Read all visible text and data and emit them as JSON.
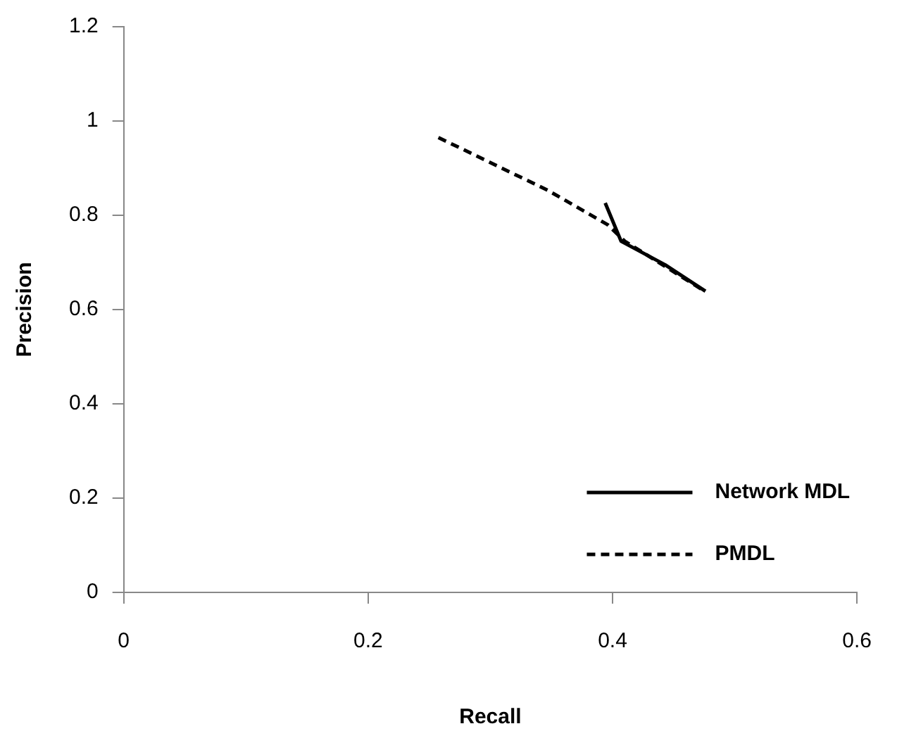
{
  "chart_data": {
    "type": "line",
    "xlabel": "Recall",
    "ylabel": "Precision",
    "xlim": [
      0,
      0.6
    ],
    "xticks": [
      0,
      0.2,
      0.4,
      0.6
    ],
    "ylim": [
      0,
      1.2
    ],
    "yticks": [
      0,
      0.2,
      0.4,
      0.6,
      0.8,
      1,
      1.2
    ],
    "grid": false,
    "legend": "bottom right",
    "marker": "none",
    "series": [
      {
        "name": "Network MDL",
        "color": "#000000",
        "line_style": "solid",
        "x": [
          0.394,
          0.407,
          0.443,
          0.476
        ],
        "values": [
          0.826,
          0.745,
          0.695,
          0.639
        ]
      },
      {
        "name": "PMDL",
        "color": "#000000",
        "line_style": "dashed",
        "x": [
          0.2575,
          0.347,
          0.396,
          0.41,
          0.476
        ],
        "values": [
          0.965,
          0.853,
          0.78,
          0.745,
          0.638
        ]
      }
    ]
  }
}
